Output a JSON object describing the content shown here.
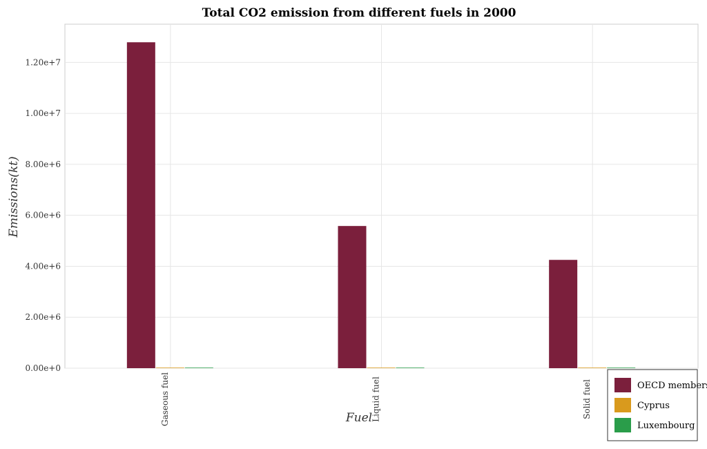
{
  "chart_data": {
    "type": "bar",
    "title": "Total CO2 emission from different fuels in 2000",
    "xlabel": "Fuel",
    "ylabel": "Emissions(kt)",
    "categories": [
      "Gaseous fuel",
      "Liquid fuel",
      "Solid fuel"
    ],
    "ylim": [
      0,
      13500000
    ],
    "yticks": [
      0,
      2000000,
      4000000,
      6000000,
      8000000,
      10000000,
      12000000
    ],
    "ytick_labels": [
      "0.00e+0",
      "2.00e+6",
      "4.00e+6",
      "6.00e+6",
      "8.00e+6",
      "1.00e+7",
      "1.20e+7"
    ],
    "grid": true,
    "legend_position": "bottom-right",
    "series": [
      {
        "name": "OECD members",
        "color": "#7b1f3c",
        "values": [
          12790000,
          5580000,
          4250000
        ]
      },
      {
        "name": "Cyprus",
        "color": "#d99a1d",
        "values": [
          6600,
          5500,
          550
        ]
      },
      {
        "name": "Luxembourg",
        "color": "#2a9d4a",
        "values": [
          8300,
          7600,
          500
        ]
      }
    ]
  }
}
